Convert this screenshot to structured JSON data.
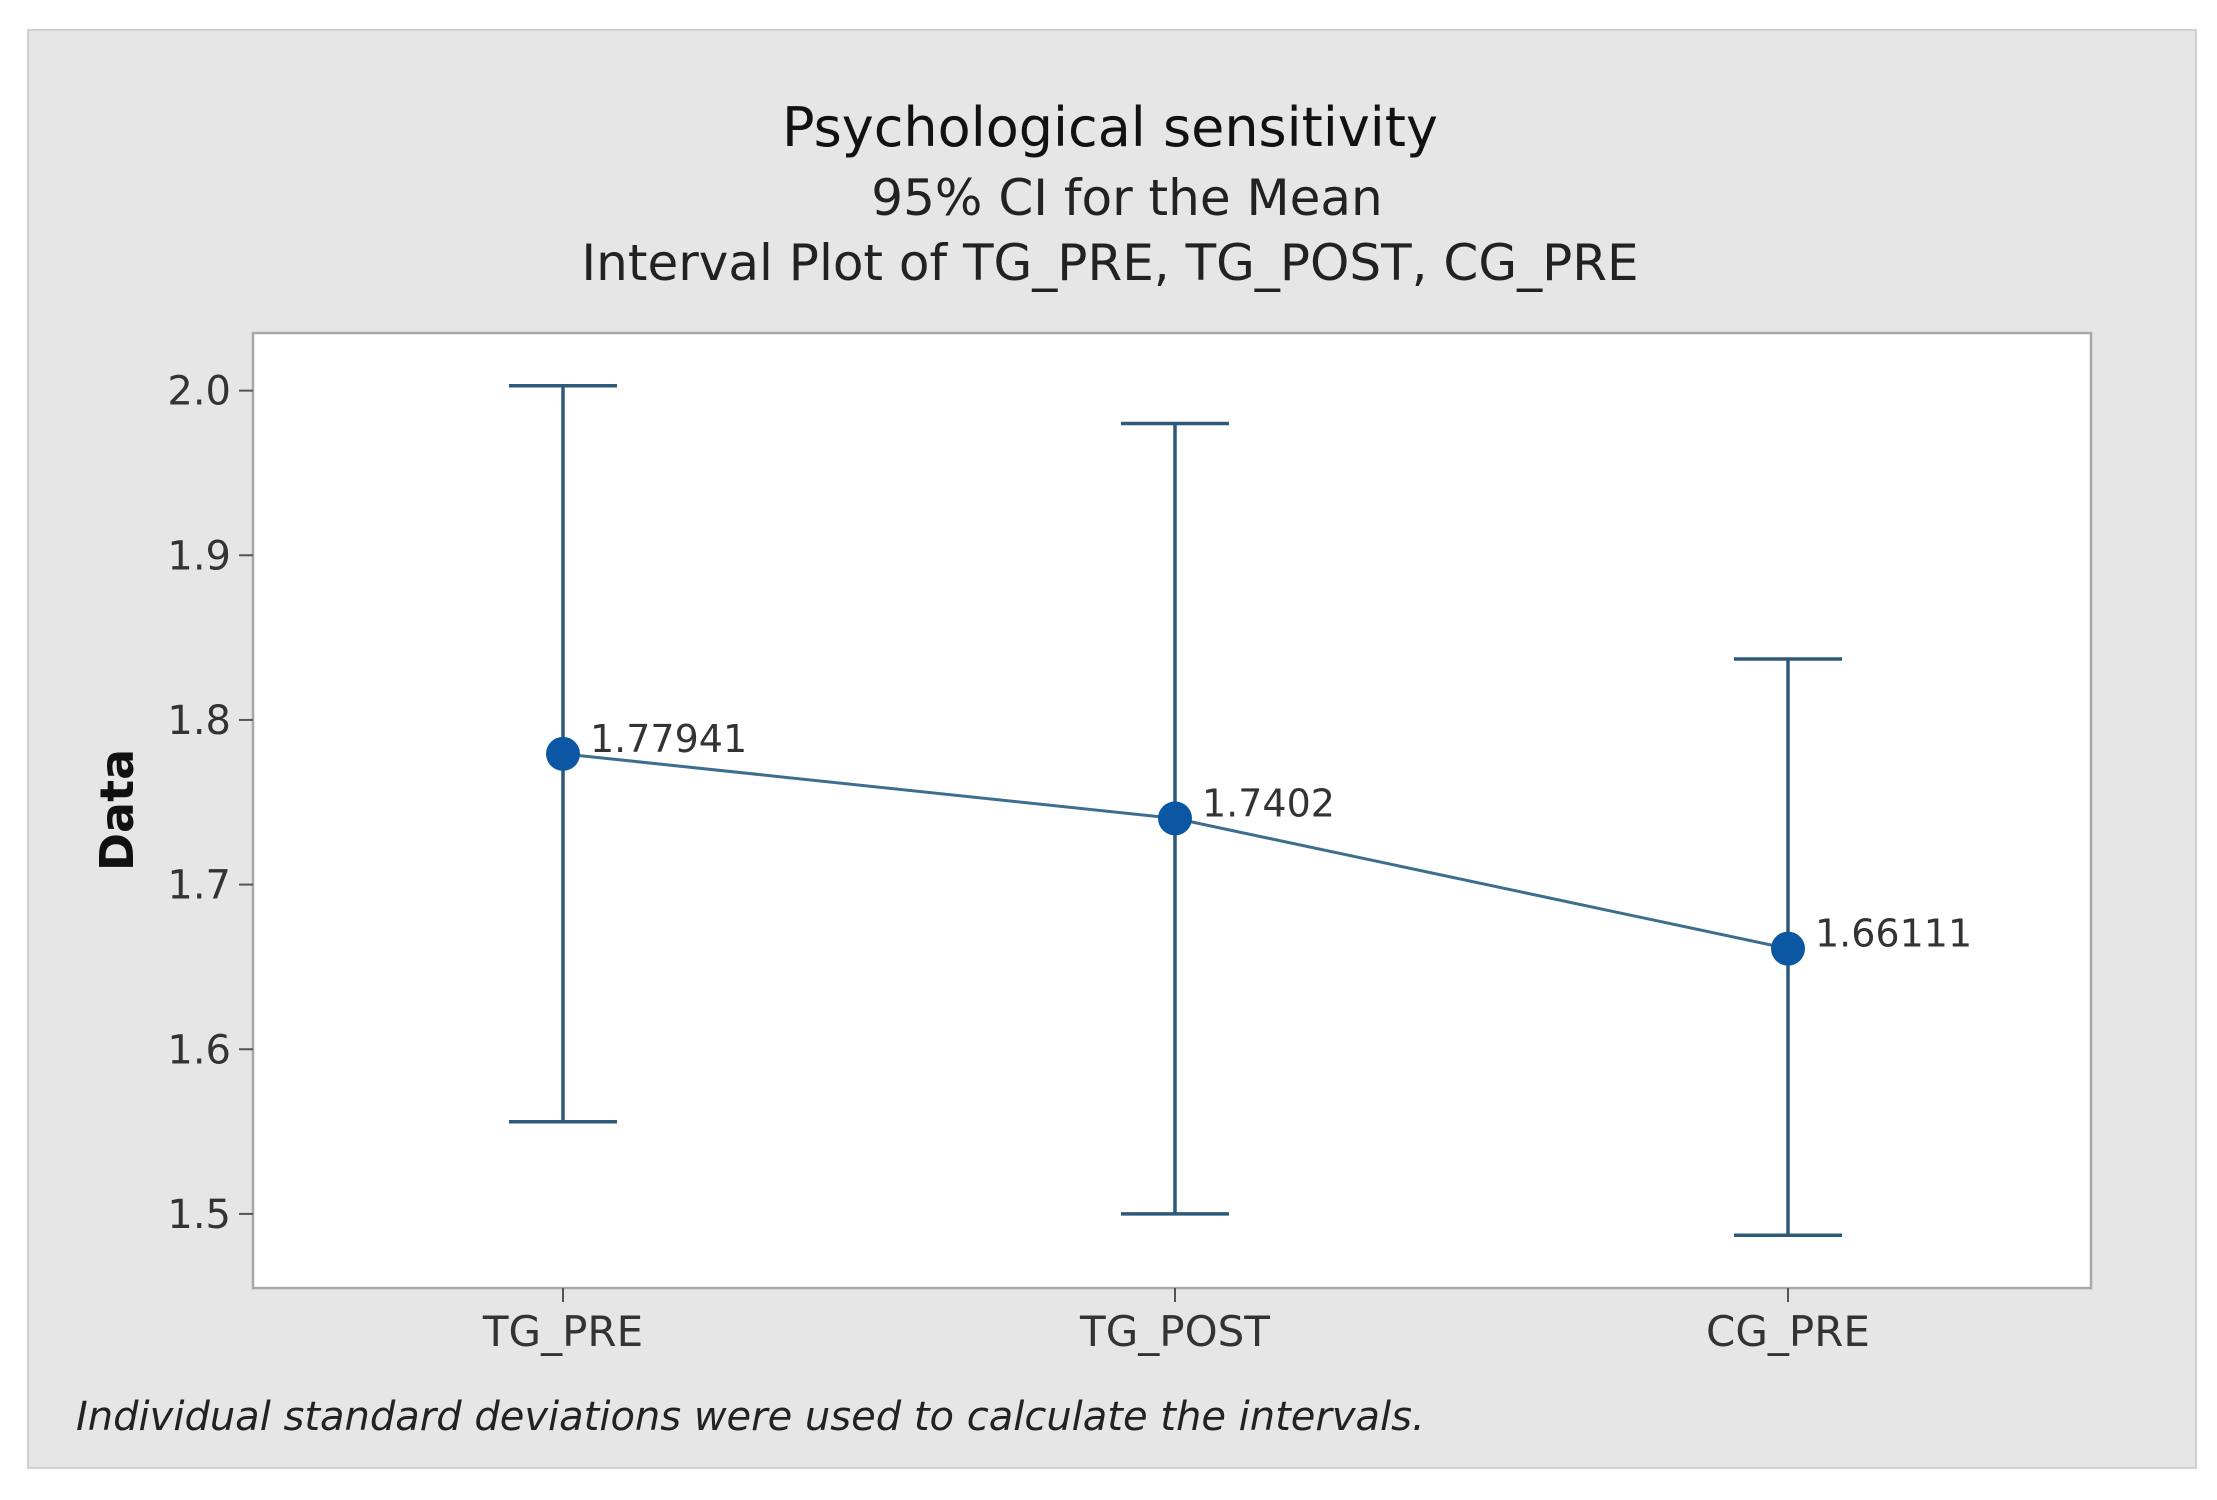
{
  "chart_data": {
    "type": "interval",
    "title": "Psychological sensitivity",
    "subtitle_1": "95% CI for the Mean",
    "subtitle_2": "Interval Plot of TG_PRE, TG_POST, CG_PRE",
    "xlabel": "",
    "ylabel": "Data",
    "ylim": [
      1.455,
      2.035
    ],
    "yticks": [
      "2.0",
      "1.9",
      "1.8",
      "1.7",
      "1.6",
      "1.5"
    ],
    "ytick_values": [
      2.0,
      1.9,
      1.8,
      1.7,
      1.6,
      1.5
    ],
    "categories": [
      "TG_PRE",
      "TG_POST",
      "CG_PRE"
    ],
    "means": [
      1.77941,
      1.7402,
      1.66111
    ],
    "mean_labels": [
      "1.77941",
      "1.7402",
      "1.66111"
    ],
    "lower": [
      1.556,
      1.5,
      1.487
    ],
    "upper": [
      2.003,
      1.98,
      1.837
    ],
    "footnote": "Individual standard deviations were used to calculate the intervals.",
    "colors": {
      "outer_background": "#e6e6e6",
      "plot_background": "#ffffff",
      "interval": "#2e5a7a",
      "connect_line": "#3d6e8e",
      "marker": "#0b57a4",
      "frame": "#a8a8a8"
    }
  }
}
